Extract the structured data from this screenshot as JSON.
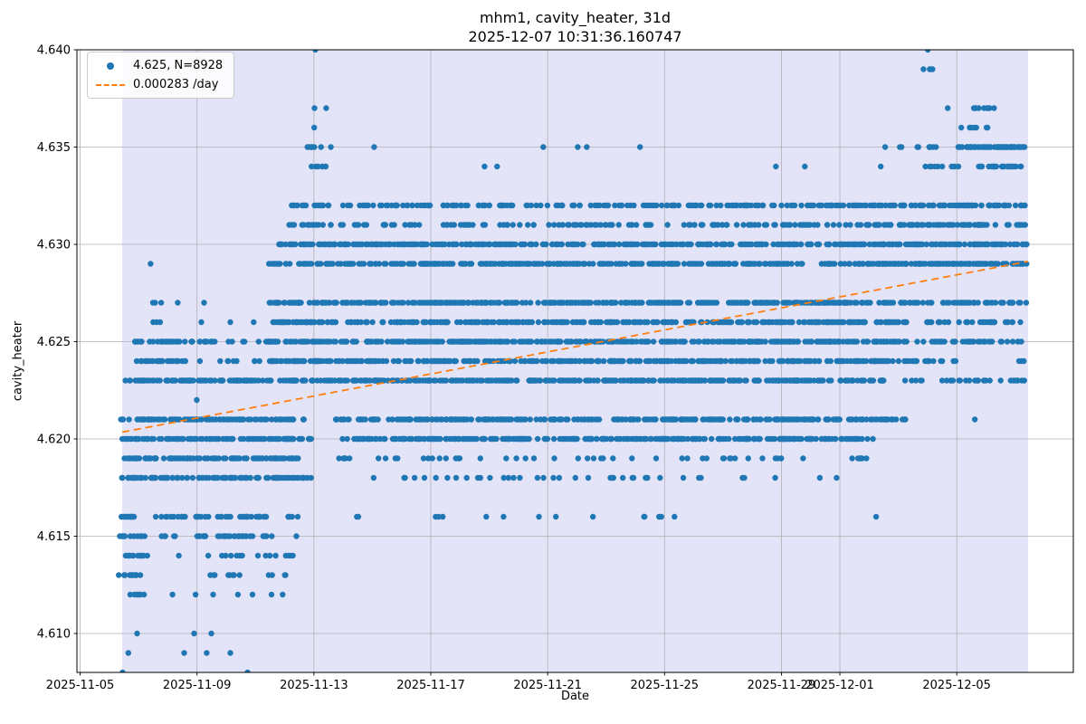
{
  "header": {
    "title": "mhm1, cavity_heater, 31d",
    "subtitle": "2025-12-07 10:31:36.160747"
  },
  "legend": {
    "items": [
      {
        "label": "4.625, N=8928",
        "marker": "scatter-dot",
        "color": "#1f77b4"
      },
      {
        "label": "0.000283 /day",
        "marker": "dashed-line",
        "color": "#ff7f0e"
      }
    ]
  },
  "chart_data": {
    "type": "scatter",
    "title": "mhm1, cavity_heater, 31d",
    "subtitle": "2025-12-07 10:31:36.160747",
    "xlabel": "Date",
    "ylabel": "cavity_heater",
    "reported_point_count": 8928,
    "reported_mean": 4.625,
    "grid": true,
    "colors": {
      "points": "#1f77b4",
      "trend": "#ff7f0e",
      "span": "#e4e4f9",
      "grid": "#b0b0b0",
      "spine": "#000000"
    },
    "x_axis": {
      "epoch": "2025-11-05",
      "xlim_days": [
        -0.11,
        33.99
      ],
      "ticks": [
        {
          "day": 0,
          "label": "2025-11-05"
        },
        {
          "day": 4,
          "label": "2025-11-09"
        },
        {
          "day": 8,
          "label": "2025-11-13"
        },
        {
          "day": 12,
          "label": "2025-11-17"
        },
        {
          "day": 16,
          "label": "2025-11-21"
        },
        {
          "day": 20,
          "label": "2025-11-25"
        },
        {
          "day": 24,
          "label": "2025-11-29"
        },
        {
          "day": 26,
          "label": "2025-12-01"
        },
        {
          "day": 30,
          "label": "2025-12-05"
        }
      ]
    },
    "y_axis": {
      "ylim": [
        4.608,
        4.64
      ],
      "ticks": [
        {
          "v": 4.61,
          "label": "4.610"
        },
        {
          "v": 4.615,
          "label": "4.615"
        },
        {
          "v": 4.62,
          "label": "4.620"
        },
        {
          "v": 4.625,
          "label": "4.625"
        },
        {
          "v": 4.63,
          "label": "4.630"
        },
        {
          "v": 4.635,
          "label": "4.635"
        },
        {
          "v": 4.64,
          "label": "4.640"
        }
      ]
    },
    "span": {
      "start_day": 1.44,
      "end_day": 32.44
    },
    "trend": {
      "start_day": 1.44,
      "end_day": 32.44,
      "start_value": 4.62035,
      "slope_per_day": 0.000283
    },
    "bands": [
      {
        "y": 4.64,
        "segs": [
          [
            8.03,
            8.07,
            1
          ],
          [
            28.99,
            29.03,
            1
          ]
        ]
      },
      {
        "y": 4.639,
        "segs": [
          [
            28.84,
            28.88,
            1
          ],
          [
            29.03,
            29.26,
            3
          ]
        ]
      },
      {
        "y": 4.637,
        "segs": [
          [
            8.0,
            8.04,
            1
          ],
          [
            8.4,
            8.44,
            1
          ],
          [
            29.67,
            29.71,
            1
          ],
          [
            30.38,
            32.02,
            9
          ]
        ]
      },
      {
        "y": 4.636,
        "segs": [
          [
            7.99,
            8.03,
            1
          ],
          [
            30.06,
            31.1,
            7
          ]
        ]
      },
      {
        "y": 4.635,
        "segs": [
          [
            7.74,
            8.32,
            7
          ],
          [
            8.56,
            8.6,
            1
          ],
          [
            10.04,
            10.08,
            1
          ],
          [
            15.83,
            15.87,
            1
          ],
          [
            17.01,
            17.05,
            1
          ],
          [
            17.32,
            17.36,
            1
          ],
          [
            19.14,
            19.18,
            1
          ],
          [
            27.53,
            27.57,
            1
          ],
          [
            27.99,
            28.2,
            2
          ],
          [
            28.52,
            29.36,
            7
          ],
          [
            30.05,
            32.4,
            62
          ]
        ]
      },
      {
        "y": 4.634,
        "segs": [
          [
            7.78,
            8.48,
            7
          ],
          [
            13.82,
            13.86,
            1
          ],
          [
            14.25,
            14.29,
            1
          ],
          [
            23.79,
            23.83,
            1
          ],
          [
            24.78,
            24.82,
            1
          ],
          [
            27.38,
            27.42,
            1
          ],
          [
            28.83,
            29.52,
            6
          ],
          [
            29.74,
            30.14,
            4
          ],
          [
            30.48,
            32.36,
            26
          ]
        ]
      },
      {
        "y": 4.632,
        "segs": [
          [
            7.22,
            8.7,
            18
          ],
          [
            8.92,
            12.0,
            30
          ],
          [
            12.2,
            16.0,
            34
          ],
          [
            16.2,
            20.5,
            40
          ],
          [
            20.7,
            24.5,
            40
          ],
          [
            24.6,
            28.0,
            44
          ],
          [
            28.05,
            32.4,
            72
          ]
        ]
      },
      {
        "y": 4.631,
        "segs": [
          [
            7.1,
            8.7,
            15
          ],
          [
            8.92,
            13.5,
            30
          ],
          [
            13.7,
            18.5,
            34
          ],
          [
            18.7,
            23.5,
            36
          ],
          [
            23.6,
            27.8,
            40
          ],
          [
            27.9,
            32.4,
            62
          ]
        ]
      },
      {
        "y": 4.63,
        "segs": [
          [
            6.7,
            32.4,
            430
          ]
        ]
      },
      {
        "y": 4.629,
        "segs": [
          [
            2.39,
            2.43,
            1
          ],
          [
            6.4,
            32.4,
            440
          ]
        ]
      },
      {
        "y": 4.627,
        "segs": [
          [
            2.4,
            2.82,
            3
          ],
          [
            3.32,
            3.36,
            1
          ],
          [
            4.22,
            4.26,
            1
          ],
          [
            6.3,
            32.4,
            440
          ]
        ]
      },
      {
        "y": 4.626,
        "segs": [
          [
            2.43,
            3.14,
            3
          ],
          [
            4.13,
            4.17,
            1
          ],
          [
            5.12,
            5.16,
            1
          ],
          [
            5.92,
            5.96,
            1
          ],
          [
            6.6,
            28.3,
            368
          ],
          [
            28.95,
            30.15,
            12
          ],
          [
            30.3,
            32.4,
            22
          ]
        ]
      },
      {
        "y": 4.625,
        "segs": [
          [
            1.84,
            4.72,
            42
          ],
          [
            5.06,
            5.66,
            4
          ],
          [
            6.08,
            6.14,
            1
          ],
          [
            6.3,
            28.55,
            380
          ],
          [
            28.6,
            32.4,
            38
          ]
        ]
      },
      {
        "y": 4.624,
        "segs": [
          [
            1.93,
            3.64,
            28
          ],
          [
            4.08,
            4.12,
            1
          ],
          [
            4.78,
            5.36,
            5
          ],
          [
            5.85,
            6.16,
            3
          ],
          [
            6.45,
            27.9,
            358
          ],
          [
            28.0,
            29.6,
            16
          ],
          [
            29.88,
            30.02,
            2
          ],
          [
            32.08,
            32.32,
            3
          ]
        ]
      },
      {
        "y": 4.623,
        "segs": [
          [
            1.47,
            27.5,
            450
          ],
          [
            27.9,
            32.36,
            30
          ]
        ]
      },
      {
        "y": 4.622,
        "segs": [
          [
            3.97,
            4.01,
            1
          ]
        ]
      },
      {
        "y": 4.621,
        "segs": [
          [
            1.39,
            7.66,
            105
          ],
          [
            8.7,
            27.93,
            325
          ],
          [
            28.0,
            28.36,
            4
          ],
          [
            30.6,
            30.64,
            1
          ]
        ]
      },
      {
        "y": 4.62,
        "segs": [
          [
            1.39,
            8.0,
            110
          ],
          [
            8.78,
            27.18,
            300
          ]
        ]
      },
      {
        "y": 4.619,
        "segs": [
          [
            1.47,
            7.5,
            100
          ],
          [
            8.8,
            27.0,
            55
          ]
        ]
      },
      {
        "y": 4.618,
        "segs": [
          [
            1.39,
            7.92,
            105
          ],
          [
            8.8,
            26.1,
            40
          ]
        ]
      },
      {
        "y": 4.616,
        "segs": [
          [
            1.39,
            2.42,
            14
          ],
          [
            2.55,
            6.6,
            40
          ],
          [
            6.95,
            7.68,
            5
          ],
          [
            9.42,
            9.62,
            2
          ],
          [
            12.05,
            12.58,
            3
          ],
          [
            13.88,
            13.92,
            1
          ],
          [
            14.47,
            14.51,
            1
          ],
          [
            15.68,
            15.72,
            1
          ],
          [
            16.26,
            16.3,
            1
          ],
          [
            17.53,
            17.57,
            1
          ],
          [
            19.11,
            19.4,
            2
          ],
          [
            19.79,
            20.08,
            3
          ],
          [
            20.32,
            20.36,
            1
          ],
          [
            27.22,
            27.26,
            1
          ]
        ]
      },
      {
        "y": 4.615,
        "segs": [
          [
            1.33,
            2.32,
            12
          ],
          [
            2.67,
            3.32,
            5
          ],
          [
            4.0,
            6.68,
            30
          ],
          [
            7.38,
            7.42,
            1
          ]
        ]
      },
      {
        "y": 4.614,
        "segs": [
          [
            1.43,
            2.32,
            12
          ],
          [
            3.1,
            7.32,
            16
          ]
        ]
      },
      {
        "y": 4.613,
        "segs": [
          [
            1.3,
            2.32,
            13
          ],
          [
            4.05,
            7.42,
            13
          ]
        ]
      },
      {
        "y": 4.612,
        "segs": [
          [
            1.39,
            2.42,
            7
          ],
          [
            3.14,
            3.18,
            1
          ],
          [
            3.93,
            3.97,
            1
          ],
          [
            4.53,
            4.57,
            1
          ],
          [
            5.38,
            5.42,
            1
          ],
          [
            5.88,
            5.92,
            1
          ],
          [
            6.53,
            6.57,
            1
          ],
          [
            6.91,
            6.95,
            1
          ]
        ]
      },
      {
        "y": 4.61,
        "segs": [
          [
            1.93,
            1.97,
            1
          ],
          [
            3.88,
            3.92,
            1
          ],
          [
            4.47,
            4.51,
            1
          ]
        ]
      },
      {
        "y": 4.609,
        "segs": [
          [
            1.63,
            1.67,
            1
          ],
          [
            3.54,
            3.58,
            1
          ],
          [
            4.31,
            4.35,
            1
          ],
          [
            5.12,
            5.16,
            1
          ]
        ]
      },
      {
        "y": 4.608,
        "segs": [
          [
            1.43,
            1.47,
            1
          ],
          [
            5.71,
            5.75,
            1
          ]
        ]
      }
    ]
  }
}
